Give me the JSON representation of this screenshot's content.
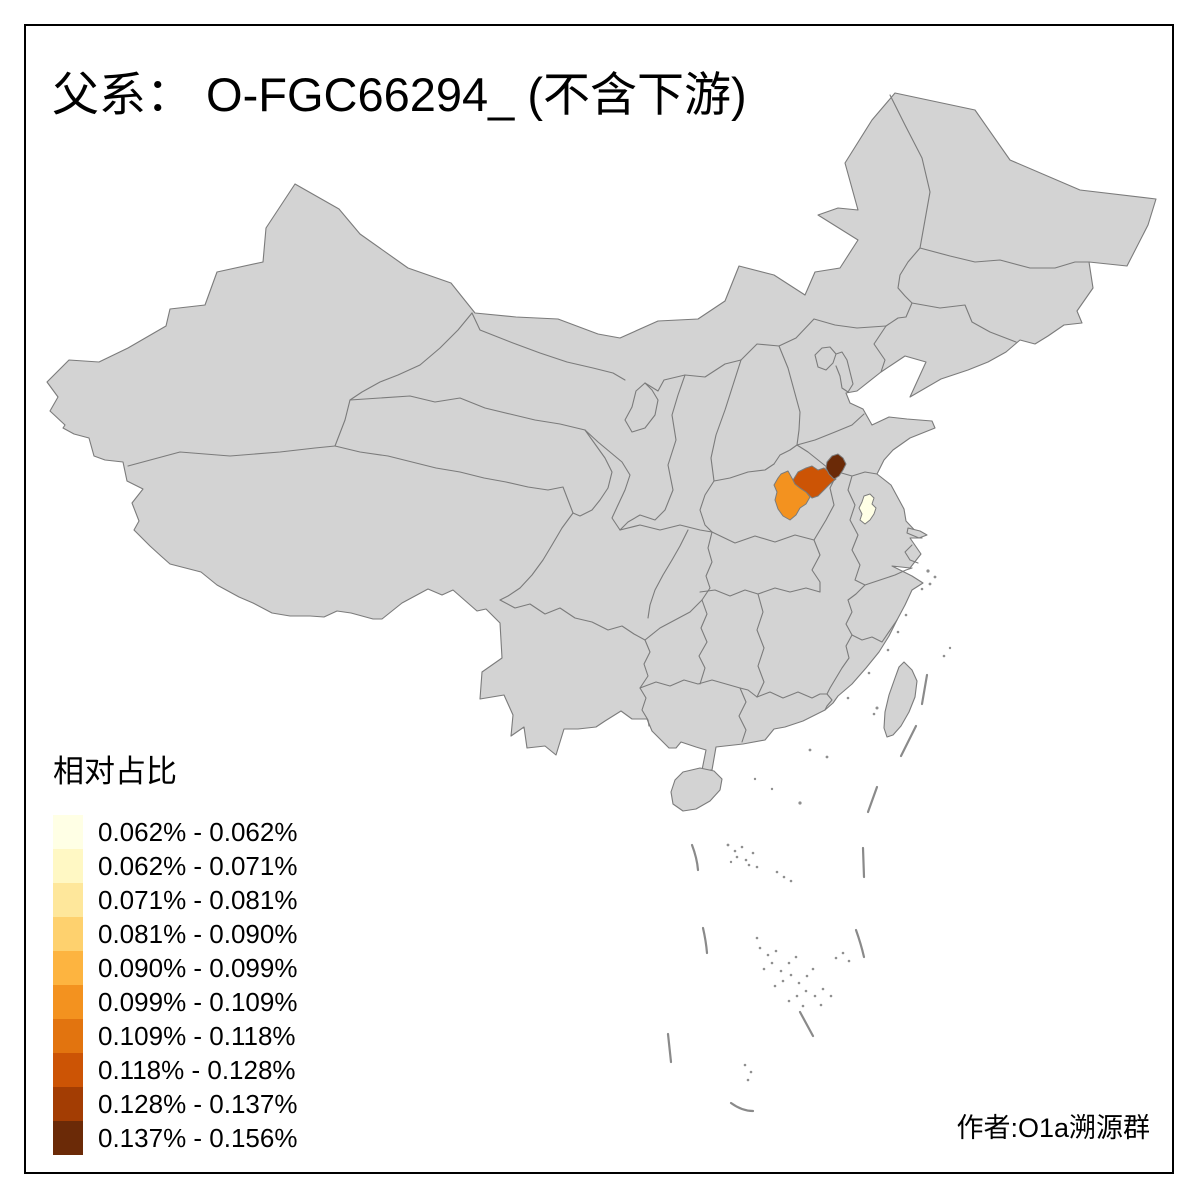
{
  "title": "父系： O-FGC66294_ (不含下游)",
  "legend": {
    "title": "相对占比",
    "entries": [
      {
        "label": "0.062% - 0.062%",
        "color": "#FFFFE5"
      },
      {
        "label": "0.062% - 0.071%",
        "color": "#FFF8C4"
      },
      {
        "label": "0.071% - 0.081%",
        "color": "#FEE79B"
      },
      {
        "label": "0.081% - 0.090%",
        "color": "#FED16E"
      },
      {
        "label": "0.090% - 0.099%",
        "color": "#FDB440"
      },
      {
        "label": "0.099% - 0.109%",
        "color": "#F3921F"
      },
      {
        "label": "0.109% - 0.118%",
        "color": "#E2740F"
      },
      {
        "label": "0.118% - 0.128%",
        "color": "#CC5405"
      },
      {
        "label": "0.128% - 0.137%",
        "color": "#A33D03"
      },
      {
        "label": "0.137% - 0.156%",
        "color": "#6B2A07"
      }
    ]
  },
  "author": "作者:O1a溯源群",
  "map": {
    "land_fill": "#D3D3D3",
    "boundary_color": "#7B7B7B",
    "background": "#FFFFFF",
    "frame_color": "#000000",
    "highlighted_regions": [
      {
        "name": "central-henan-prefecture",
        "color": "#F3921F",
        "legend_class": "0.099% - 0.109%"
      },
      {
        "name": "east-henan-prefecture",
        "color": "#CC5405",
        "legend_class": "0.118% - 0.128%"
      },
      {
        "name": "southwest-shandong-prefecture",
        "color": "#6B2A07",
        "legend_class": "0.137% - 0.156%"
      },
      {
        "name": "north-jiangsu-prefecture",
        "color": "#FFFFE5",
        "legend_class": "0.062% - 0.062%"
      }
    ]
  }
}
